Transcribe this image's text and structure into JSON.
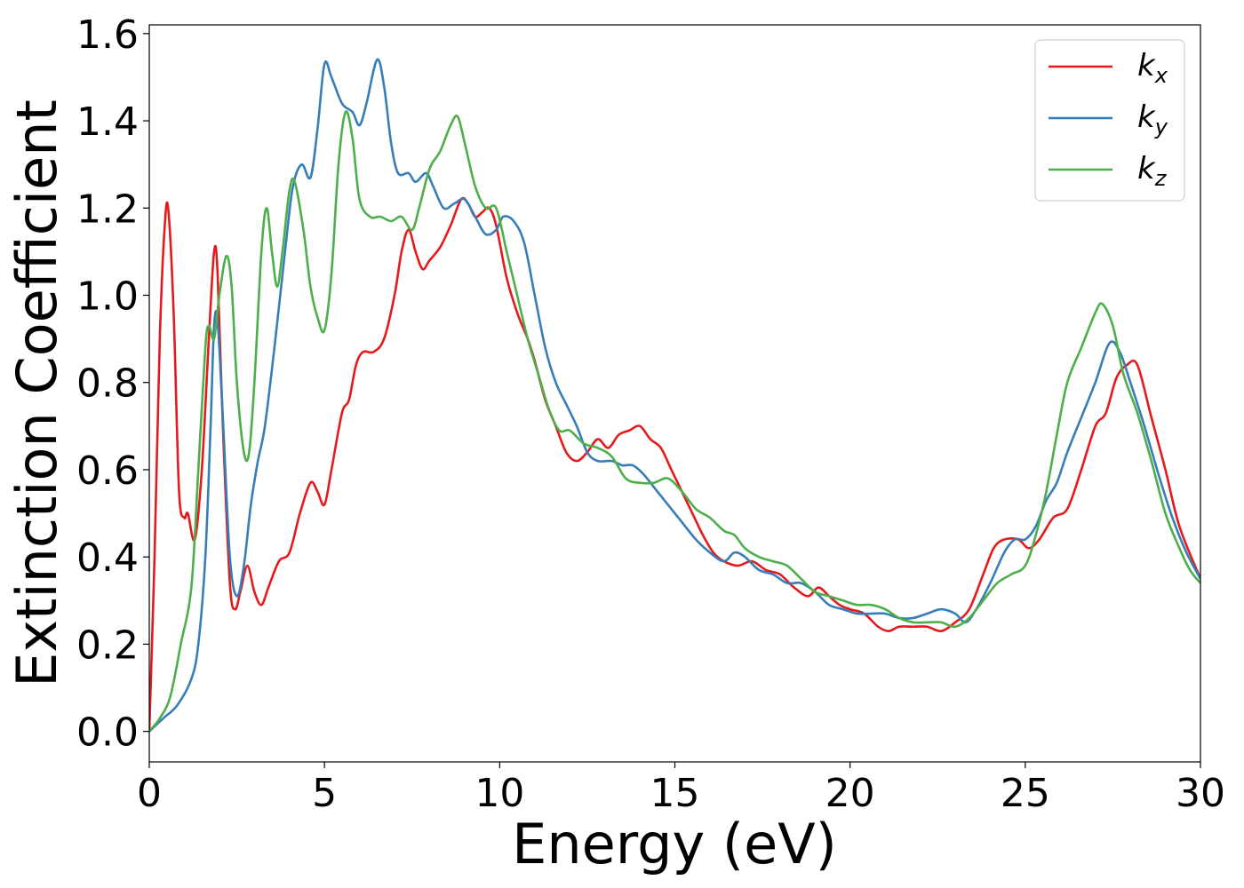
{
  "chart_data": {
    "type": "line",
    "title": "",
    "xlabel": "Energy (eV)",
    "ylabel": "Extinction Coefficient",
    "xlim": [
      0,
      30
    ],
    "ylim": [
      -0.07,
      1.62
    ],
    "xticks": [
      0,
      5,
      10,
      15,
      20,
      25,
      30
    ],
    "xtick_labels": [
      "0",
      "5",
      "10",
      "15",
      "20",
      "25",
      "30"
    ],
    "yticks": [
      0.0,
      0.2,
      0.4,
      0.6,
      0.8,
      1.0,
      1.2,
      1.4,
      1.6
    ],
    "ytick_labels": [
      "0.0",
      "0.2",
      "0.4",
      "0.6",
      "0.8",
      "1.0",
      "1.2",
      "1.4",
      "1.6"
    ],
    "grid": false,
    "legend_position": "top-right",
    "series": [
      {
        "name": "k_x",
        "label_base": "k",
        "label_sub": "x",
        "color": "#e41a1c",
        "points": [
          [
            0,
            0.0
          ],
          [
            0.15,
            0.4
          ],
          [
            0.3,
            0.9
          ],
          [
            0.45,
            1.17
          ],
          [
            0.55,
            1.19
          ],
          [
            0.7,
            0.95
          ],
          [
            0.85,
            0.55
          ],
          [
            1.0,
            0.49
          ],
          [
            1.1,
            0.5
          ],
          [
            1.3,
            0.44
          ],
          [
            1.5,
            0.6
          ],
          [
            1.7,
            0.9
          ],
          [
            1.85,
            1.1
          ],
          [
            1.95,
            1.05
          ],
          [
            2.1,
            0.7
          ],
          [
            2.3,
            0.34
          ],
          [
            2.45,
            0.28
          ],
          [
            2.6,
            0.32
          ],
          [
            2.8,
            0.38
          ],
          [
            3.0,
            0.32
          ],
          [
            3.2,
            0.29
          ],
          [
            3.4,
            0.33
          ],
          [
            3.7,
            0.39
          ],
          [
            4.0,
            0.41
          ],
          [
            4.3,
            0.5
          ],
          [
            4.6,
            0.57
          ],
          [
            4.8,
            0.55
          ],
          [
            5.0,
            0.52
          ],
          [
            5.2,
            0.6
          ],
          [
            5.5,
            0.73
          ],
          [
            5.7,
            0.76
          ],
          [
            5.9,
            0.84
          ],
          [
            6.1,
            0.87
          ],
          [
            6.4,
            0.87
          ],
          [
            6.7,
            0.9
          ],
          [
            7.0,
            1.0
          ],
          [
            7.2,
            1.1
          ],
          [
            7.4,
            1.15
          ],
          [
            7.6,
            1.1
          ],
          [
            7.8,
            1.06
          ],
          [
            8.0,
            1.08
          ],
          [
            8.3,
            1.11
          ],
          [
            8.6,
            1.16
          ],
          [
            8.9,
            1.22
          ],
          [
            9.1,
            1.21
          ],
          [
            9.3,
            1.18
          ],
          [
            9.5,
            1.19
          ],
          [
            9.7,
            1.2
          ],
          [
            9.9,
            1.16
          ],
          [
            10.2,
            1.04
          ],
          [
            10.5,
            0.96
          ],
          [
            10.8,
            0.9
          ],
          [
            11.0,
            0.85
          ],
          [
            11.3,
            0.76
          ],
          [
            11.6,
            0.7
          ],
          [
            11.9,
            0.64
          ],
          [
            12.2,
            0.62
          ],
          [
            12.5,
            0.64
          ],
          [
            12.8,
            0.67
          ],
          [
            13.1,
            0.65
          ],
          [
            13.4,
            0.68
          ],
          [
            13.7,
            0.69
          ],
          [
            14.0,
            0.7
          ],
          [
            14.3,
            0.67
          ],
          [
            14.6,
            0.65
          ],
          [
            14.9,
            0.6
          ],
          [
            15.2,
            0.55
          ],
          [
            15.5,
            0.5
          ],
          [
            15.8,
            0.45
          ],
          [
            16.1,
            0.41
          ],
          [
            16.4,
            0.39
          ],
          [
            16.8,
            0.38
          ],
          [
            17.2,
            0.39
          ],
          [
            17.6,
            0.37
          ],
          [
            18.0,
            0.36
          ],
          [
            18.4,
            0.33
          ],
          [
            18.8,
            0.31
          ],
          [
            19.1,
            0.33
          ],
          [
            19.4,
            0.31
          ],
          [
            19.7,
            0.29
          ],
          [
            20.0,
            0.28
          ],
          [
            20.4,
            0.27
          ],
          [
            20.8,
            0.24
          ],
          [
            21.1,
            0.23
          ],
          [
            21.4,
            0.24
          ],
          [
            21.8,
            0.24
          ],
          [
            22.2,
            0.24
          ],
          [
            22.6,
            0.23
          ],
          [
            23.0,
            0.25
          ],
          [
            23.4,
            0.28
          ],
          [
            23.8,
            0.36
          ],
          [
            24.1,
            0.42
          ],
          [
            24.4,
            0.44
          ],
          [
            24.8,
            0.44
          ],
          [
            25.1,
            0.42
          ],
          [
            25.4,
            0.44
          ],
          [
            25.8,
            0.49
          ],
          [
            26.2,
            0.51
          ],
          [
            26.6,
            0.6
          ],
          [
            27.0,
            0.7
          ],
          [
            27.3,
            0.73
          ],
          [
            27.6,
            0.81
          ],
          [
            27.9,
            0.84
          ],
          [
            28.2,
            0.84
          ],
          [
            28.6,
            0.72
          ],
          [
            29.0,
            0.6
          ],
          [
            29.4,
            0.47
          ],
          [
            30.0,
            0.35
          ]
        ]
      },
      {
        "name": "k_y",
        "label_base": "k",
        "label_sub": "y",
        "color": "#377eb8",
        "points": [
          [
            0,
            0.0
          ],
          [
            0.4,
            0.03
          ],
          [
            0.8,
            0.06
          ],
          [
            1.2,
            0.12
          ],
          [
            1.4,
            0.2
          ],
          [
            1.6,
            0.4
          ],
          [
            1.75,
            0.7
          ],
          [
            1.85,
            0.93
          ],
          [
            1.95,
            0.94
          ],
          [
            2.1,
            0.72
          ],
          [
            2.3,
            0.4
          ],
          [
            2.5,
            0.31
          ],
          [
            2.7,
            0.38
          ],
          [
            2.9,
            0.52
          ],
          [
            3.1,
            0.62
          ],
          [
            3.3,
            0.7
          ],
          [
            3.6,
            0.9
          ],
          [
            3.9,
            1.12
          ],
          [
            4.1,
            1.25
          ],
          [
            4.35,
            1.3
          ],
          [
            4.6,
            1.27
          ],
          [
            4.8,
            1.38
          ],
          [
            5.0,
            1.53
          ],
          [
            5.2,
            1.5
          ],
          [
            5.5,
            1.44
          ],
          [
            5.8,
            1.42
          ],
          [
            6.0,
            1.39
          ],
          [
            6.2,
            1.44
          ],
          [
            6.5,
            1.54
          ],
          [
            6.7,
            1.48
          ],
          [
            6.9,
            1.35
          ],
          [
            7.1,
            1.28
          ],
          [
            7.4,
            1.28
          ],
          [
            7.6,
            1.26
          ],
          [
            7.9,
            1.28
          ],
          [
            8.1,
            1.25
          ],
          [
            8.4,
            1.2
          ],
          [
            8.7,
            1.21
          ],
          [
            9.0,
            1.22
          ],
          [
            9.3,
            1.18
          ],
          [
            9.6,
            1.14
          ],
          [
            9.9,
            1.15
          ],
          [
            10.1,
            1.18
          ],
          [
            10.4,
            1.17
          ],
          [
            10.7,
            1.12
          ],
          [
            11.0,
            1.0
          ],
          [
            11.3,
            0.88
          ],
          [
            11.6,
            0.8
          ],
          [
            11.9,
            0.75
          ],
          [
            12.2,
            0.7
          ],
          [
            12.5,
            0.64
          ],
          [
            12.8,
            0.62
          ],
          [
            13.2,
            0.62
          ],
          [
            13.5,
            0.61
          ],
          [
            13.8,
            0.61
          ],
          [
            14.1,
            0.59
          ],
          [
            14.5,
            0.55
          ],
          [
            14.9,
            0.51
          ],
          [
            15.2,
            0.48
          ],
          [
            15.6,
            0.44
          ],
          [
            16.0,
            0.41
          ],
          [
            16.4,
            0.39
          ],
          [
            16.7,
            0.41
          ],
          [
            17.0,
            0.4
          ],
          [
            17.4,
            0.37
          ],
          [
            17.8,
            0.36
          ],
          [
            18.2,
            0.34
          ],
          [
            18.6,
            0.34
          ],
          [
            19.0,
            0.32
          ],
          [
            19.4,
            0.29
          ],
          [
            19.8,
            0.28
          ],
          [
            20.2,
            0.27
          ],
          [
            20.6,
            0.27
          ],
          [
            21.0,
            0.27
          ],
          [
            21.4,
            0.26
          ],
          [
            21.8,
            0.26
          ],
          [
            22.2,
            0.27
          ],
          [
            22.6,
            0.28
          ],
          [
            23.0,
            0.27
          ],
          [
            23.3,
            0.25
          ],
          [
            23.6,
            0.28
          ],
          [
            24.0,
            0.34
          ],
          [
            24.4,
            0.41
          ],
          [
            24.7,
            0.44
          ],
          [
            25.0,
            0.44
          ],
          [
            25.3,
            0.47
          ],
          [
            25.6,
            0.53
          ],
          [
            25.9,
            0.57
          ],
          [
            26.2,
            0.64
          ],
          [
            26.6,
            0.72
          ],
          [
            27.0,
            0.8
          ],
          [
            27.4,
            0.89
          ],
          [
            27.7,
            0.87
          ],
          [
            28.0,
            0.8
          ],
          [
            28.4,
            0.7
          ],
          [
            28.8,
            0.59
          ],
          [
            29.2,
            0.49
          ],
          [
            29.6,
            0.41
          ],
          [
            30.0,
            0.35
          ]
        ]
      },
      {
        "name": "k_z",
        "label_base": "k",
        "label_sub": "z",
        "color": "#4daf4a",
        "points": [
          [
            0,
            0.0
          ],
          [
            0.3,
            0.03
          ],
          [
            0.6,
            0.08
          ],
          [
            0.9,
            0.2
          ],
          [
            1.2,
            0.33
          ],
          [
            1.4,
            0.6
          ],
          [
            1.6,
            0.88
          ],
          [
            1.7,
            0.93
          ],
          [
            1.85,
            0.9
          ],
          [
            2.0,
            1.0
          ],
          [
            2.2,
            1.09
          ],
          [
            2.35,
            1.02
          ],
          [
            2.5,
            0.8
          ],
          [
            2.7,
            0.64
          ],
          [
            2.85,
            0.64
          ],
          [
            3.0,
            0.8
          ],
          [
            3.2,
            1.1
          ],
          [
            3.35,
            1.2
          ],
          [
            3.5,
            1.1
          ],
          [
            3.65,
            1.02
          ],
          [
            3.8,
            1.1
          ],
          [
            4.0,
            1.24
          ],
          [
            4.15,
            1.26
          ],
          [
            4.4,
            1.15
          ],
          [
            4.6,
            1.02
          ],
          [
            4.8,
            0.95
          ],
          [
            5.0,
            0.92
          ],
          [
            5.2,
            1.05
          ],
          [
            5.4,
            1.3
          ],
          [
            5.6,
            1.42
          ],
          [
            5.8,
            1.36
          ],
          [
            6.0,
            1.22
          ],
          [
            6.3,
            1.18
          ],
          [
            6.6,
            1.18
          ],
          [
            6.9,
            1.17
          ],
          [
            7.2,
            1.18
          ],
          [
            7.5,
            1.15
          ],
          [
            7.7,
            1.2
          ],
          [
            8.0,
            1.29
          ],
          [
            8.3,
            1.33
          ],
          [
            8.6,
            1.39
          ],
          [
            8.8,
            1.41
          ],
          [
            9.0,
            1.35
          ],
          [
            9.3,
            1.25
          ],
          [
            9.6,
            1.2
          ],
          [
            9.9,
            1.2
          ],
          [
            10.2,
            1.1
          ],
          [
            10.5,
            1.0
          ],
          [
            10.8,
            0.9
          ],
          [
            11.1,
            0.82
          ],
          [
            11.4,
            0.74
          ],
          [
            11.7,
            0.69
          ],
          [
            12.0,
            0.69
          ],
          [
            12.4,
            0.66
          ],
          [
            12.8,
            0.65
          ],
          [
            13.2,
            0.63
          ],
          [
            13.6,
            0.58
          ],
          [
            14.0,
            0.57
          ],
          [
            14.4,
            0.57
          ],
          [
            14.8,
            0.58
          ],
          [
            15.2,
            0.55
          ],
          [
            15.6,
            0.51
          ],
          [
            16.0,
            0.49
          ],
          [
            16.4,
            0.46
          ],
          [
            16.7,
            0.45
          ],
          [
            17.0,
            0.42
          ],
          [
            17.4,
            0.4
          ],
          [
            17.8,
            0.39
          ],
          [
            18.2,
            0.38
          ],
          [
            18.6,
            0.35
          ],
          [
            19.0,
            0.32
          ],
          [
            19.4,
            0.31
          ],
          [
            19.8,
            0.3
          ],
          [
            20.2,
            0.29
          ],
          [
            20.6,
            0.29
          ],
          [
            21.0,
            0.28
          ],
          [
            21.4,
            0.26
          ],
          [
            21.8,
            0.25
          ],
          [
            22.2,
            0.25
          ],
          [
            22.6,
            0.25
          ],
          [
            23.0,
            0.24
          ],
          [
            23.4,
            0.26
          ],
          [
            23.8,
            0.3
          ],
          [
            24.2,
            0.34
          ],
          [
            24.6,
            0.36
          ],
          [
            25.0,
            0.38
          ],
          [
            25.3,
            0.45
          ],
          [
            25.6,
            0.55
          ],
          [
            25.9,
            0.68
          ],
          [
            26.2,
            0.8
          ],
          [
            26.6,
            0.88
          ],
          [
            27.0,
            0.96
          ],
          [
            27.2,
            0.98
          ],
          [
            27.5,
            0.93
          ],
          [
            27.8,
            0.82
          ],
          [
            28.2,
            0.73
          ],
          [
            28.6,
            0.62
          ],
          [
            29.0,
            0.5
          ],
          [
            29.4,
            0.42
          ],
          [
            29.7,
            0.37
          ],
          [
            30.0,
            0.34
          ]
        ]
      }
    ]
  }
}
